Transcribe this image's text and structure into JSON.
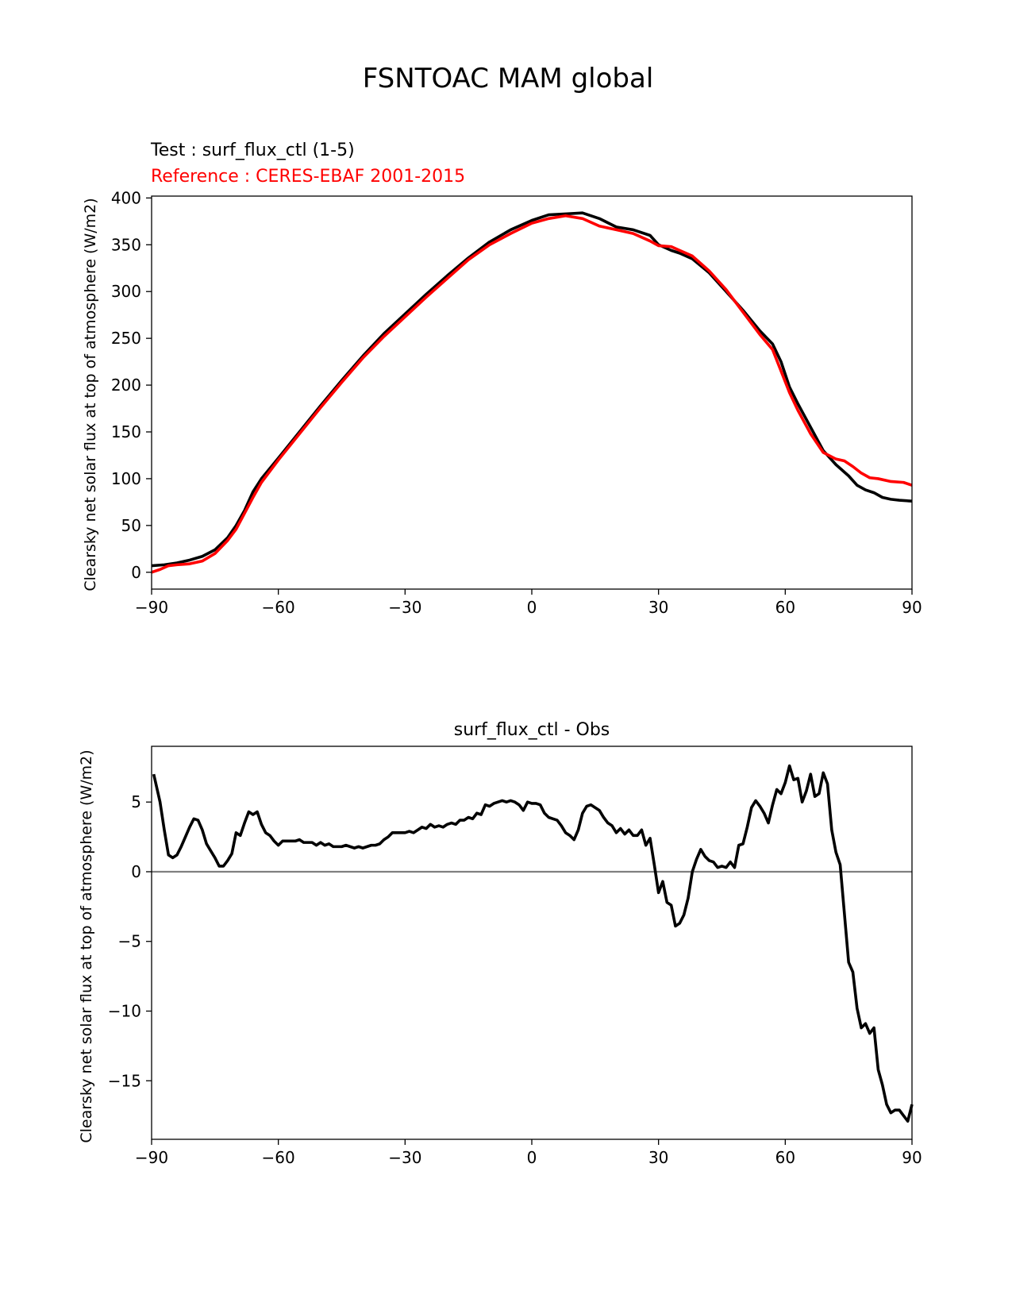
{
  "suptitle": "FSNTOAC MAM global",
  "chart_data": [
    {
      "type": "line",
      "title_test": "Test : surf_flux_ctl (1-5)",
      "title_reference": "Reference : CERES-EBAF 2001-2015",
      "xlabel": "",
      "ylabel": "Clearsky net solar flux at top of atmosphere (W/m2)",
      "xlim": [
        -90,
        90
      ],
      "ylim": [
        -18,
        402
      ],
      "xticks": [
        -90,
        -60,
        -30,
        0,
        30,
        60,
        90
      ],
      "xtick_labels": [
        "−90",
        "−60",
        "−30",
        "0",
        "30",
        "60",
        "90"
      ],
      "yticks": [
        0,
        50,
        100,
        150,
        200,
        250,
        300,
        350,
        400
      ],
      "ytick_labels": [
        "0",
        "50",
        "100",
        "150",
        "200",
        "250",
        "300",
        "350",
        "400"
      ],
      "grid": false,
      "colors": {
        "test": "#000000",
        "reference": "#ff0000"
      },
      "series": [
        {
          "color": "#000000",
          "x": [
            -90,
            -87,
            -84,
            -81,
            -78,
            -75,
            -72,
            -70,
            -68,
            -66,
            -64,
            -60,
            -55,
            -50,
            -45,
            -40,
            -35,
            -30,
            -25,
            -20,
            -15,
            -10,
            -5,
            0,
            4,
            8,
            12,
            16,
            20,
            24,
            28,
            30,
            33,
            35,
            38,
            42,
            46,
            50,
            54,
            57,
            59,
            61,
            63,
            66,
            69,
            72,
            75,
            77,
            79,
            81,
            83,
            85,
            87,
            90
          ],
          "y": [
            7,
            8,
            10,
            13,
            17,
            24,
            37,
            50,
            66,
            86,
            100,
            122,
            150,
            178,
            205,
            231,
            255,
            276,
            297,
            317,
            336,
            353,
            366,
            376,
            382,
            383,
            384,
            378,
            369,
            366,
            360,
            350,
            344,
            341,
            335,
            320,
            300,
            280,
            258,
            244,
            225,
            198,
            180,
            155,
            130,
            115,
            103,
            93,
            88,
            85,
            80,
            78,
            77,
            76
          ]
        },
        {
          "color": "#ff0000",
          "x": [
            -90,
            -88,
            -86,
            -84,
            -81,
            -78,
            -75,
            -72,
            -70,
            -68,
            -66,
            -64,
            -60,
            -55,
            -50,
            -45,
            -40,
            -35,
            -30,
            -25,
            -20,
            -15,
            -10,
            -5,
            0,
            4,
            8,
            12,
            16,
            20,
            24,
            28,
            30,
            33,
            35,
            38,
            42,
            46,
            50,
            54,
            57,
            59,
            61,
            63,
            66,
            69,
            72,
            74,
            76,
            78,
            80,
            82,
            85,
            88,
            90
          ],
          "y": [
            0,
            3,
            7,
            8,
            9,
            12,
            20,
            34,
            46,
            63,
            80,
            96,
            120,
            148,
            176,
            203,
            229,
            252,
            273,
            294,
            314,
            334,
            350,
            362,
            373,
            378,
            381,
            378,
            370,
            366,
            362,
            354,
            349,
            348,
            344,
            338,
            322,
            302,
            278,
            254,
            238,
            215,
            192,
            173,
            148,
            128,
            121,
            119,
            113,
            106,
            101,
            100,
            97,
            96,
            93
          ]
        }
      ]
    },
    {
      "type": "line",
      "title": "surf_flux_ctl - Obs",
      "xlabel": "",
      "ylabel": "Clearsky net solar flux at top of atmosphere (W/m2)",
      "xlim": [
        -90,
        90
      ],
      "ylim": [
        -19.2,
        9.0
      ],
      "xticks": [
        -90,
        -60,
        -30,
        0,
        30,
        60,
        90
      ],
      "xtick_labels": [
        "−90",
        "−60",
        "−30",
        "0",
        "30",
        "60",
        "90"
      ],
      "yticks": [
        -15,
        -10,
        -5,
        0,
        5
      ],
      "ytick_labels": [
        "−15",
        "−10",
        "−5",
        "0",
        "5"
      ],
      "grid": false,
      "zero_line_color": "#808080",
      "series": [
        {
          "color": "#000000",
          "x": [
            -89.5,
            -88,
            -87,
            -86,
            -85,
            -84,
            -83,
            -82,
            -81,
            -80,
            -79,
            -78,
            -77,
            -76,
            -75,
            -74,
            -73,
            -72,
            -71,
            -70,
            -69,
            -68,
            -67,
            -66,
            -65,
            -64,
            -63,
            -62,
            -61,
            -60,
            -59,
            -58,
            -57,
            -56,
            -55,
            -54,
            -53,
            -52,
            -51,
            -50,
            -49,
            -48,
            -47,
            -46,
            -45,
            -44,
            -43,
            -42,
            -41,
            -40,
            -39,
            -38,
            -37,
            -36,
            -35,
            -34,
            -33,
            -32,
            -31,
            -30,
            -29,
            -28,
            -27,
            -26,
            -25,
            -24,
            -23,
            -22,
            -21,
            -20,
            -19,
            -18,
            -17,
            -16,
            -15,
            -14,
            -13,
            -12,
            -11,
            -10,
            -9,
            -8,
            -7,
            -6,
            -5,
            -4,
            -3,
            -2,
            -1,
            0,
            1,
            2,
            3,
            4,
            5,
            6,
            7,
            8,
            9,
            10,
            11,
            12,
            13,
            14,
            15,
            16,
            17,
            18,
            19,
            20,
            21,
            22,
            23,
            24,
            25,
            26,
            27,
            28,
            29,
            30,
            31,
            32,
            33,
            34,
            35,
            36,
            37,
            38,
            39,
            40,
            41,
            42,
            43,
            44,
            45,
            46,
            47,
            48,
            49,
            50,
            51,
            52,
            53,
            54,
            55,
            56,
            57,
            58,
            59,
            60,
            61,
            62,
            63,
            64,
            65,
            66,
            67,
            68,
            69,
            70,
            71,
            72,
            73,
            74,
            75,
            76,
            77,
            78,
            79,
            80,
            81,
            82,
            83,
            84,
            85,
            86,
            87,
            88,
            89,
            90
          ],
          "y": [
            7.0,
            5.0,
            3.0,
            1.2,
            1.0,
            1.2,
            1.8,
            2.5,
            3.2,
            3.8,
            3.7,
            3.0,
            2.0,
            1.5,
            1.0,
            0.4,
            0.4,
            0.8,
            1.3,
            2.8,
            2.6,
            3.5,
            4.3,
            4.1,
            4.3,
            3.4,
            2.8,
            2.6,
            2.2,
            1.9,
            2.2,
            2.2,
            2.2,
            2.2,
            2.3,
            2.1,
            2.1,
            2.1,
            1.9,
            2.1,
            1.9,
            2.0,
            1.8,
            1.8,
            1.8,
            1.9,
            1.8,
            1.7,
            1.8,
            1.7,
            1.8,
            1.9,
            1.9,
            2.0,
            2.3,
            2.5,
            2.8,
            2.8,
            2.8,
            2.8,
            2.9,
            2.8,
            3.0,
            3.2,
            3.1,
            3.4,
            3.2,
            3.3,
            3.2,
            3.4,
            3.5,
            3.4,
            3.7,
            3.7,
            3.9,
            3.8,
            4.2,
            4.1,
            4.8,
            4.7,
            4.9,
            5.0,
            5.1,
            5.0,
            5.1,
            5.0,
            4.8,
            4.4,
            5.0,
            4.9,
            4.9,
            4.8,
            4.2,
            3.9,
            3.8,
            3.7,
            3.3,
            2.8,
            2.6,
            2.3,
            3.0,
            4.2,
            4.7,
            4.8,
            4.6,
            4.4,
            3.9,
            3.5,
            3.3,
            2.8,
            3.1,
            2.7,
            3.0,
            2.6,
            2.6,
            3.0,
            1.9,
            2.4,
            0.5,
            -1.5,
            -0.7,
            -2.2,
            -2.4,
            -3.9,
            -3.7,
            -3.1,
            -1.9,
            0.0,
            0.9,
            1.6,
            1.1,
            0.8,
            0.7,
            0.3,
            0.4,
            0.3,
            0.7,
            0.3,
            1.9,
            2.0,
            3.2,
            4.6,
            5.1,
            4.7,
            4.2,
            3.5,
            4.8,
            5.9,
            5.6,
            6.4,
            7.6,
            6.6,
            6.7,
            5.0,
            5.8,
            7.0,
            5.4,
            5.6,
            7.1,
            6.3,
            3.0,
            1.4,
            0.5,
            -3.0,
            -6.5,
            -7.2,
            -9.8,
            -11.2,
            -10.9,
            -11.6,
            -11.2,
            -14.2,
            -15.3,
            -16.7,
            -17.3,
            -17.1,
            -17.1,
            -17.5,
            -17.9,
            -16.7
          ]
        }
      ]
    }
  ]
}
